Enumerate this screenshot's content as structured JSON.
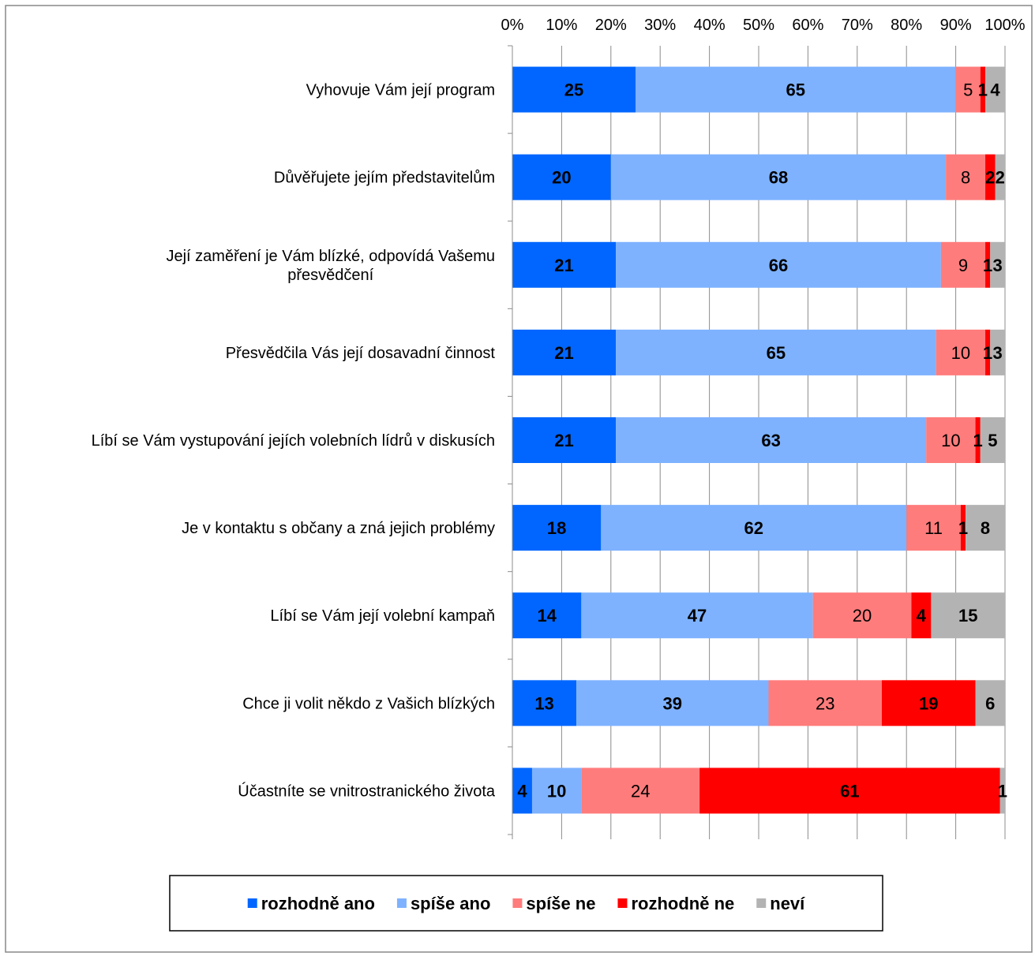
{
  "chart_data": {
    "type": "bar",
    "orientation": "horizontal",
    "stacked": true,
    "stack_mode": "percent",
    "categories": [
      "Vyhovuje Vám její program",
      "Důvěřujete jejím představitelům",
      "Její zaměření je Vám blízké, odpovídá Vašemu přesvědčení",
      "Přesvědčila Vás její dosavadní činnost",
      "Líbí se Vám vystupování jejích volebních lídrů v diskusích",
      "Je v kontaktu s občany a zná jejich problémy",
      "Líbí se Vám její volební kampaň",
      "Chce ji volit někdo z Vašich blízkých",
      "Účastníte se vnitrostranického života"
    ],
    "category_lines": [
      [
        "Vyhovuje Vám její program"
      ],
      [
        "Důvěřujete jejím představitelům"
      ],
      [
        "Její zaměření je Vám blízké, odpovídá Vašemu",
        "přesvědčení"
      ],
      [
        "Přesvědčila Vás její dosavadní činnost"
      ],
      [
        "Líbí se Vám vystupování jejích volebních lídrů v diskusích"
      ],
      [
        "Je v kontaktu s občany a zná jejich problémy"
      ],
      [
        "Líbí se Vám její volební kampaň"
      ],
      [
        "Chce ji volit někdo z Vašich blízkých"
      ],
      [
        "Účastníte se vnitrostranického života"
      ]
    ],
    "series": [
      {
        "name": "rozhodně ano",
        "color": "#0066ff",
        "label_color": "#000000",
        "label_bold": true,
        "values": [
          25,
          20,
          21,
          21,
          21,
          18,
          14,
          13,
          4
        ]
      },
      {
        "name": "spíše ano",
        "color": "#7eb2ff",
        "label_color": "#000000",
        "label_bold": true,
        "values": [
          65,
          68,
          66,
          65,
          63,
          62,
          47,
          39,
          10
        ]
      },
      {
        "name": "spíše ne",
        "color": "#ff7c7c",
        "label_color": "#000000",
        "label_bold": false,
        "values": [
          5,
          8,
          9,
          10,
          10,
          11,
          20,
          23,
          24
        ]
      },
      {
        "name": "rozhodně ne",
        "color": "#ff0000",
        "label_color": "#000000",
        "label_bold": true,
        "values": [
          1,
          2,
          1,
          1,
          1,
          1,
          4,
          19,
          61
        ]
      },
      {
        "name": "neví",
        "color": "#b3b3b3",
        "label_color": "#000000",
        "label_bold": true,
        "values": [
          4,
          2,
          3,
          3,
          5,
          8,
          15,
          6,
          1
        ]
      }
    ],
    "x_ticks": [
      "0%",
      "10%",
      "20%",
      "30%",
      "40%",
      "50%",
      "60%",
      "70%",
      "80%",
      "90%",
      "100%"
    ],
    "xlim": [
      0,
      100
    ],
    "x_axis_position": "top",
    "grid": true,
    "legend_position": "bottom"
  }
}
